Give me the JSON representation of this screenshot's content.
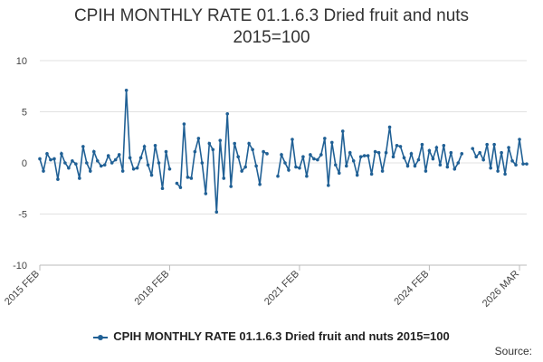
{
  "chart_data": {
    "type": "line",
    "title_line1": "CPIH MONTHLY RATE 01.1.6.3 Dried fruit and nuts",
    "title_line2": "2015=100",
    "xlabel": "",
    "ylabel": "",
    "ylim": [
      -10,
      10
    ],
    "yticks": [
      -10,
      -5,
      0,
      5,
      10
    ],
    "xtick_labels": [
      "2015 FEB",
      "2018 FEB",
      "2021 FEB",
      "2024 FEB",
      "2026 MAR"
    ],
    "xtick_indices": [
      0,
      36,
      72,
      108,
      133
    ],
    "legend_position": "bottom",
    "source_label": "Source:",
    "series": [
      {
        "name": "CPIH MONTHLY RATE 01.1.6.3 Dried fruit and nuts 2015=100",
        "color": "#206095",
        "values": [
          0.4,
          -0.8,
          0.9,
          0.3,
          0.4,
          -1.6,
          0.9,
          0.0,
          -0.5,
          0.2,
          -0.1,
          -1.5,
          1.6,
          0.0,
          -0.8,
          1.1,
          0.2,
          -0.3,
          -0.2,
          0.7,
          0.0,
          0.3,
          0.8,
          -0.8,
          7.1,
          0.5,
          -0.6,
          -0.5,
          0.5,
          1.6,
          -0.2,
          -1.2,
          1.7,
          0.0,
          -2.5,
          1.1,
          -0.6,
          null,
          -2.0,
          -2.4,
          3.8,
          -1.4,
          -1.5,
          1.1,
          2.4,
          0.0,
          -3.0,
          1.9,
          1.3,
          -4.8,
          2.2,
          -1.5,
          4.8,
          -2.3,
          1.9,
          0.6,
          -0.8,
          -0.4,
          1.9,
          1.3,
          -0.3,
          -2.1,
          1.1,
          0.9,
          null,
          null,
          -1.3,
          0.8,
          0.0,
          -0.7,
          2.3,
          -0.4,
          -0.5,
          0.6,
          -1.3,
          0.8,
          0.4,
          0.3,
          0.8,
          2.4,
          -2.2,
          2.0,
          -0.2,
          -1.0,
          3.1,
          -0.3,
          1.0,
          0.2,
          -1.2,
          0.6,
          0.7,
          0.7,
          -1.1,
          1.1,
          1.0,
          -0.8,
          1.0,
          3.5,
          0.6,
          1.7,
          1.6,
          0.5,
          -0.3,
          0.9,
          -0.3,
          0.3,
          1.8,
          -0.8,
          1.2,
          0.4,
          1.5,
          -0.2,
          1.7,
          -0.4,
          1.0,
          -0.6,
          0.0,
          0.9,
          null,
          null,
          1.4,
          0.6,
          1.0,
          0.3,
          1.8,
          -0.5,
          1.8,
          -0.8,
          1.0,
          -1.1,
          1.5,
          0.2,
          -0.2,
          2.3,
          -0.1,
          -0.1
        ]
      }
    ]
  }
}
